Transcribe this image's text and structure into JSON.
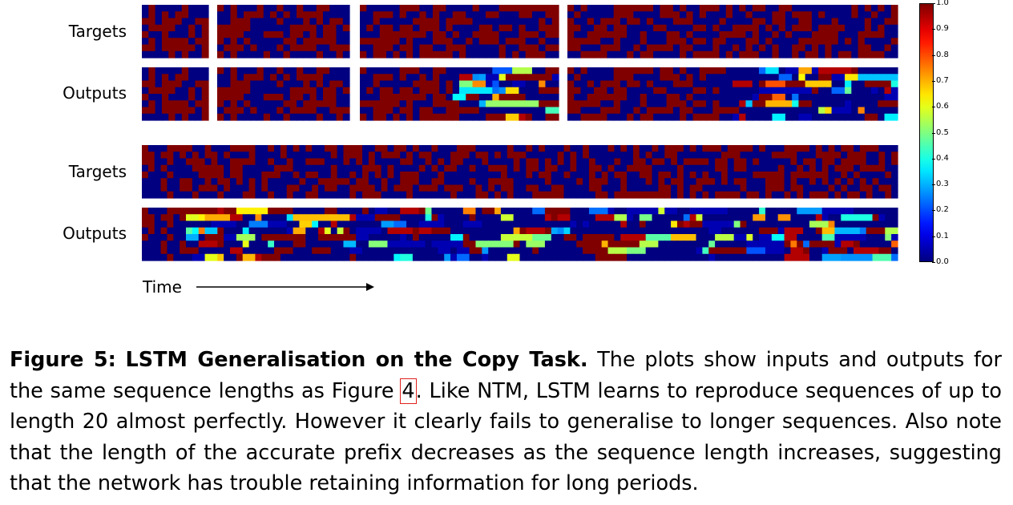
{
  "figure": {
    "row_labels": {
      "top_targets": "Targets",
      "top_outputs": "Outputs",
      "bottom_targets": "Targets",
      "bottom_outputs": "Outputs"
    },
    "time_label": "Time",
    "colorbar": {
      "ticks": [
        "1.0",
        "0.9",
        "0.8",
        "0.7",
        "0.6",
        "0.5",
        "0.4",
        "0.3",
        "0.2",
        "0.1",
        "0.0"
      ],
      "colormap": "jet"
    }
  },
  "chart_data": {
    "type": "heatmap",
    "value_range": [
      0.0,
      1.0
    ],
    "rows": 8,
    "sequences": [
      {
        "group": "top",
        "columns": 10,
        "output_errors": false
      },
      {
        "group": "top",
        "columns": 20,
        "output_errors": false
      },
      {
        "group": "top",
        "columns": 30,
        "output_errors": true
      },
      {
        "group": "top",
        "columns": 50,
        "output_errors": true
      },
      {
        "group": "bottom",
        "columns": 120,
        "output_errors": true
      }
    ]
  },
  "caption": {
    "label": "Figure 5:",
    "title": "LSTM Generalisation on the Copy Task.",
    "text_1": " The plots show inputs and outputs for the same sequence lengths as Figure ",
    "ref": "4",
    "text_2": ".  Like NTM, LSTM learns to reproduce sequences of up to length 20 almost perfectly.  However it clearly fails to generalise to longer sequences. Also note that the length of the accurate prefix decreases as the sequence length increases, suggesting that the network has trouble retaining information for long periods."
  }
}
